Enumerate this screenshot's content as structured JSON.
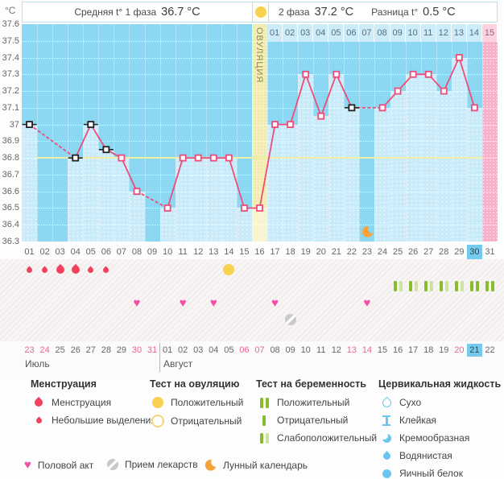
{
  "header": {
    "unit": "°C",
    "items": [
      {
        "label": "Средняя t° 1 фаза",
        "value": "36.7 °C"
      },
      {
        "label": "2 фаза",
        "value": "37.2 °C"
      },
      {
        "label": "Разница t°",
        "value": "0.5 °C"
      }
    ],
    "ovulation_band_label": "ОВУЛЯЦИЯ"
  },
  "chart_data": {
    "type": "line",
    "ylabel": "°C",
    "ylim": [
      36.3,
      37.6
    ],
    "ytick_step": 0.1,
    "yticks": [
      "37.6",
      "37.5",
      "37.4",
      "37.3",
      "37.2",
      "37.1",
      "37",
      "36.9",
      "36.8",
      "36.7",
      "36.6",
      "36.5",
      "36.4",
      "36.3"
    ],
    "coverline_temp": 36.8,
    "ovulation_day": 16,
    "predicted_period_day": 31,
    "today_cycle_day": 30,
    "day_labels": [
      "01",
      "02",
      "03",
      "04",
      "05",
      "06",
      "07",
      "08",
      "09",
      "10",
      "11",
      "12",
      "13",
      "14",
      "15",
      "16",
      "17",
      "18",
      "19",
      "20",
      "21",
      "22",
      "23",
      "24",
      "25",
      "26",
      "27",
      "28",
      "29",
      "30",
      "31"
    ],
    "dpo_labels": [
      "01",
      "02",
      "03",
      "04",
      "05",
      "06",
      "07",
      "08",
      "09",
      "10",
      "11",
      "12",
      "13",
      "14",
      "15"
    ],
    "series": [
      {
        "d": 1,
        "t": 37.0,
        "m": "black"
      },
      {
        "d": 2,
        "t": null,
        "m": null
      },
      {
        "d": 3,
        "t": null,
        "m": null
      },
      {
        "d": 4,
        "t": 36.8,
        "m": "black"
      },
      {
        "d": 5,
        "t": 37.0,
        "m": "black"
      },
      {
        "d": 6,
        "t": 36.85,
        "m": "black"
      },
      {
        "d": 7,
        "t": 36.8,
        "m": "pink"
      },
      {
        "d": 8,
        "t": 36.6,
        "m": "pink"
      },
      {
        "d": 9,
        "t": null,
        "m": null
      },
      {
        "d": 10,
        "t": 36.5,
        "m": "pink"
      },
      {
        "d": 11,
        "t": 36.8,
        "m": "pink"
      },
      {
        "d": 12,
        "t": 36.8,
        "m": "pink"
      },
      {
        "d": 13,
        "t": 36.8,
        "m": "pink"
      },
      {
        "d": 14,
        "t": 36.8,
        "m": "pink"
      },
      {
        "d": 15,
        "t": 36.5,
        "m": "pink"
      },
      {
        "d": 16,
        "t": 36.5,
        "m": "pink"
      },
      {
        "d": 17,
        "t": 37.0,
        "m": "pink"
      },
      {
        "d": 18,
        "t": 37.0,
        "m": "pink"
      },
      {
        "d": 19,
        "t": 37.3,
        "m": "pink"
      },
      {
        "d": 20,
        "t": 37.05,
        "m": "pink"
      },
      {
        "d": 21,
        "t": 37.3,
        "m": "pink"
      },
      {
        "d": 22,
        "t": 37.1,
        "m": "black"
      },
      {
        "d": 23,
        "t": null,
        "m": null
      },
      {
        "d": 24,
        "t": 37.1,
        "m": "pink"
      },
      {
        "d": 25,
        "t": 37.2,
        "m": "pink"
      },
      {
        "d": 26,
        "t": 37.3,
        "m": "pink"
      },
      {
        "d": 27,
        "t": 37.3,
        "m": "pink"
      },
      {
        "d": 28,
        "t": 37.2,
        "m": "pink"
      },
      {
        "d": 29,
        "t": 37.4,
        "m": "pink"
      },
      {
        "d": 30,
        "t": 37.1,
        "m": "pink"
      },
      {
        "d": 31,
        "t": null,
        "m": null
      }
    ]
  },
  "events": {
    "menstruation": [
      {
        "day": 1,
        "size": "small"
      },
      {
        "day": 2,
        "size": "small"
      },
      {
        "day": 3,
        "size": "big"
      },
      {
        "day": 4,
        "size": "big"
      },
      {
        "day": 5,
        "size": "small"
      },
      {
        "day": 6,
        "size": "small"
      }
    ],
    "ovulation_tests": [
      {
        "day": 14,
        "result": "positive"
      }
    ],
    "pregnancy_tests": [
      {
        "day": 25,
        "result": "weak"
      },
      {
        "day": 26,
        "result": "weak"
      },
      {
        "day": 27,
        "result": "weak"
      },
      {
        "day": 28,
        "result": "weak"
      },
      {
        "day": 29,
        "result": "weak"
      },
      {
        "day": 30,
        "result": "positive"
      },
      {
        "day": 31,
        "result": "positive"
      }
    ],
    "intercourse_days": [
      8,
      11,
      13,
      17,
      23
    ],
    "medication_days": [
      18
    ],
    "lunar_days": [
      23
    ]
  },
  "calendar": {
    "months": [
      {
        "name": "Июль",
        "dates": [
          {
            "label": "23",
            "weekend": true
          },
          {
            "label": "24",
            "weekend": true
          },
          {
            "label": "25",
            "weekend": false
          },
          {
            "label": "26",
            "weekend": false
          },
          {
            "label": "27",
            "weekend": false
          },
          {
            "label": "28",
            "weekend": false
          },
          {
            "label": "29",
            "weekend": false
          },
          {
            "label": "30",
            "weekend": true
          },
          {
            "label": "31",
            "weekend": true
          }
        ]
      },
      {
        "name": "Август",
        "dates": [
          {
            "label": "01",
            "weekend": false
          },
          {
            "label": "02",
            "weekend": false
          },
          {
            "label": "03",
            "weekend": false
          },
          {
            "label": "04",
            "weekend": false
          },
          {
            "label": "05",
            "weekend": false
          },
          {
            "label": "06",
            "weekend": true
          },
          {
            "label": "07",
            "weekend": true
          },
          {
            "label": "08",
            "weekend": false
          },
          {
            "label": "09",
            "weekend": false
          },
          {
            "label": "10",
            "weekend": false
          },
          {
            "label": "11",
            "weekend": false
          },
          {
            "label": "12",
            "weekend": false
          },
          {
            "label": "13",
            "weekend": true
          },
          {
            "label": "14",
            "weekend": true
          },
          {
            "label": "15",
            "weekend": false
          },
          {
            "label": "16",
            "weekend": false
          },
          {
            "label": "17",
            "weekend": false
          },
          {
            "label": "18",
            "weekend": false
          },
          {
            "label": "19",
            "weekend": false
          },
          {
            "label": "20",
            "weekend": true
          },
          {
            "label": "21",
            "weekend": true,
            "today": true
          },
          {
            "label": "22",
            "weekend": false
          }
        ]
      }
    ]
  },
  "legend": {
    "menstruation": {
      "title": "Менструация",
      "items": [
        {
          "icon": "menstruation-drop-icon",
          "label": "Менструация"
        },
        {
          "icon": "spotting-drop-icon",
          "label": "Небольшие выделения"
        }
      ]
    },
    "ovulation_test": {
      "title": "Тест на овуляцию",
      "items": [
        {
          "icon": "ovulation-test-positive-icon",
          "label": "Положительный"
        },
        {
          "icon": "ovulation-test-negative-icon",
          "label": "Отрицательный"
        }
      ]
    },
    "pregnancy_test": {
      "title": "Тест на беременность",
      "items": [
        {
          "icon": "pregnancy-test-positive-icon",
          "label": "Положительный"
        },
        {
          "icon": "pregnancy-test-negative-icon",
          "label": "Отрицательный"
        },
        {
          "icon": "pregnancy-test-weak-icon",
          "label": "Слабоположительный"
        }
      ]
    },
    "cervical": {
      "title": "Цервикальная жидкость",
      "items": [
        {
          "icon": "cf-dry-icon",
          "label": "Сухо"
        },
        {
          "icon": "cf-sticky-icon",
          "label": "Клейкая"
        },
        {
          "icon": "cf-creamy-icon",
          "label": "Кремообразная"
        },
        {
          "icon": "cf-watery-icon",
          "label": "Водянистая"
        },
        {
          "icon": "cf-eggwhite-icon",
          "label": "Яичный белок"
        }
      ]
    },
    "bottom": [
      {
        "icon": "intercourse-heart-icon",
        "label": "Половой акт"
      },
      {
        "icon": "medication-pill-icon",
        "label": "Прием лекарств"
      },
      {
        "icon": "lunar-calendar-icon",
        "label": "Лунный календарь"
      }
    ]
  },
  "colors": {
    "chart_bg": "#8cd7f2",
    "chart_fill": "#c9eaf9",
    "ovulation_bg": "#f1ebae",
    "ovulation_fill": "#f9f5d3",
    "predicted_period_bg": "#f8b0c9",
    "predicted_period_cell": "#fcd3de",
    "line": "#ee4d79",
    "coverline": "#f3eea6",
    "today_highlight": "#74cbee",
    "weekend_text": "#ee6391",
    "menstruation": "#f2415c",
    "ovulation_test": "#f7d150",
    "pregnancy_test_dark": "#88bc2e",
    "pregnancy_test_light": "#cfe2a4",
    "intercourse": "#f44fa6",
    "medication": "#c9c9c9",
    "lunar": "#f5a33b",
    "cervical": "#6cc5ee",
    "black_marker": "#222222"
  }
}
